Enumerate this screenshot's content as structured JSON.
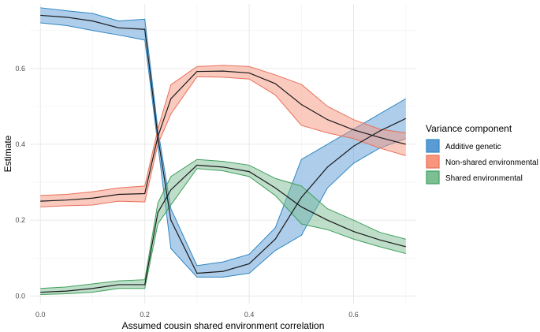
{
  "chart_data": {
    "type": "line",
    "title": "",
    "xlabel": "Assumed cousin shared environment correlation",
    "ylabel": "Estimate",
    "xlim": [
      -0.02,
      0.72
    ],
    "ylim": [
      -0.02,
      0.77
    ],
    "xticks": [
      0.0,
      0.2,
      0.4,
      0.6
    ],
    "xtick_labels": [
      "0.0",
      "0.2",
      "0.4",
      "0.6"
    ],
    "yticks": [
      0.0,
      0.2,
      0.4,
      0.6
    ],
    "ytick_labels": [
      "0.0",
      "0.2",
      "0.4",
      "0.6"
    ],
    "grid": true,
    "legend": {
      "title": "Variance component",
      "position": "right"
    },
    "x": [
      0.0,
      0.05,
      0.1,
      0.15,
      0.2,
      0.225,
      0.25,
      0.3,
      0.35,
      0.4,
      0.45,
      0.5,
      0.55,
      0.6,
      0.65,
      0.7
    ],
    "series": [
      {
        "name": "Additive genetic",
        "fill": "#5B9BD5",
        "stroke": "#2E86C1",
        "values": [
          0.74,
          0.735,
          0.725,
          0.707,
          0.703,
          0.42,
          0.2,
          0.06,
          0.065,
          0.085,
          0.15,
          0.26,
          0.34,
          0.395,
          0.435,
          0.468
        ],
        "lower": [
          0.72,
          0.713,
          0.7,
          0.688,
          0.675,
          0.4,
          0.125,
          0.05,
          0.05,
          0.06,
          0.12,
          0.16,
          0.285,
          0.35,
          0.39,
          0.415
        ],
        "upper": [
          0.76,
          0.752,
          0.745,
          0.725,
          0.73,
          0.44,
          0.23,
          0.08,
          0.09,
          0.11,
          0.18,
          0.36,
          0.4,
          0.44,
          0.48,
          0.52
        ]
      },
      {
        "name": "Non-shared environmental",
        "fill": "#F8967D",
        "stroke": "#E8705A",
        "values": [
          0.25,
          0.253,
          0.258,
          0.268,
          0.27,
          0.42,
          0.52,
          0.592,
          0.593,
          0.588,
          0.56,
          0.505,
          0.465,
          0.438,
          0.418,
          0.4
        ],
        "lower": [
          0.235,
          0.238,
          0.24,
          0.25,
          0.248,
          0.4,
          0.48,
          0.578,
          0.577,
          0.572,
          0.53,
          0.45,
          0.43,
          0.415,
          0.39,
          0.37
        ],
        "upper": [
          0.265,
          0.268,
          0.275,
          0.285,
          0.29,
          0.44,
          0.557,
          0.605,
          0.608,
          0.605,
          0.583,
          0.558,
          0.5,
          0.465,
          0.44,
          0.43
        ]
      },
      {
        "name": "Shared environmental",
        "fill": "#7DBE94",
        "stroke": "#3E9F5C",
        "values": [
          0.01,
          0.013,
          0.02,
          0.03,
          0.03,
          0.22,
          0.28,
          0.345,
          0.34,
          0.328,
          0.285,
          0.235,
          0.2,
          0.17,
          0.148,
          0.13
        ],
        "lower": [
          0.004,
          0.006,
          0.01,
          0.02,
          0.02,
          0.19,
          0.24,
          0.336,
          0.33,
          0.315,
          0.265,
          0.19,
          0.175,
          0.15,
          0.13,
          0.112
        ],
        "upper": [
          0.02,
          0.024,
          0.032,
          0.04,
          0.043,
          0.245,
          0.315,
          0.36,
          0.355,
          0.345,
          0.31,
          0.29,
          0.23,
          0.2,
          0.168,
          0.15
        ]
      }
    ]
  }
}
